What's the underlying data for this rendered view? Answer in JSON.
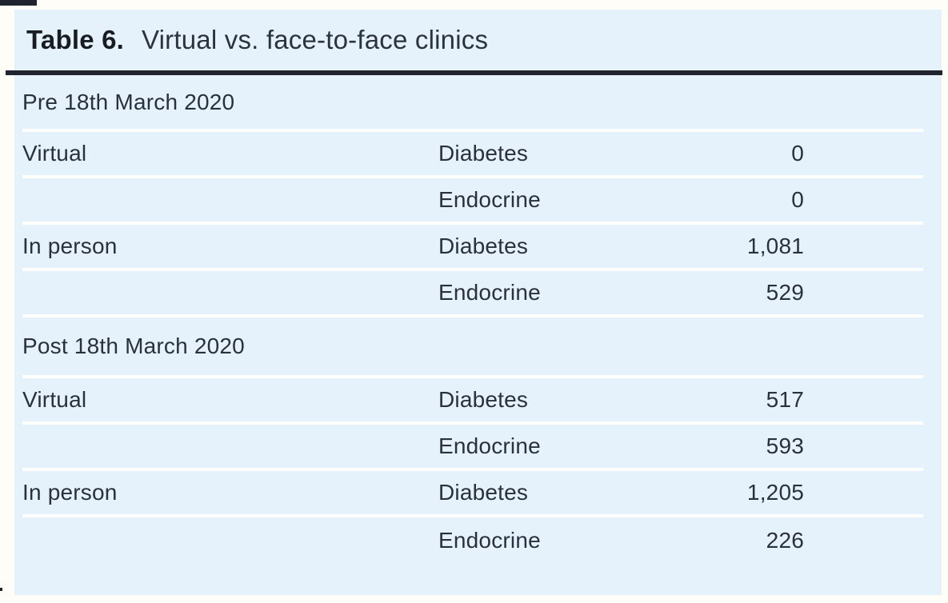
{
  "title": {
    "label": "Table 6.",
    "caption": "Virtual vs. face-to-face clinics"
  },
  "table": {
    "sections": [
      {
        "header": "Pre 18th March 2020",
        "rows": [
          {
            "group": "Virtual",
            "category": "Diabetes",
            "value": "0"
          },
          {
            "group": "",
            "category": "Endocrine",
            "value": "0"
          },
          {
            "group": "In person",
            "category": "Diabetes",
            "value": "1,081"
          },
          {
            "group": "",
            "category": "Endocrine",
            "value": "529"
          }
        ]
      },
      {
        "header": "Post 18th March 2020",
        "rows": [
          {
            "group": "Virtual",
            "category": "Diabetes",
            "value": "517"
          },
          {
            "group": "",
            "category": "Endocrine",
            "value": "593"
          },
          {
            "group": "In person",
            "category": "Diabetes",
            "value": "1,205"
          },
          {
            "group": "",
            "category": "Endocrine",
            "value": "226"
          }
        ]
      }
    ]
  },
  "colors": {
    "page_background": "#fffdf8",
    "panel_background": "#e5f2fb",
    "heavy_rule": "#20242e",
    "row_separator": "#ffffff",
    "text": "#293040"
  }
}
